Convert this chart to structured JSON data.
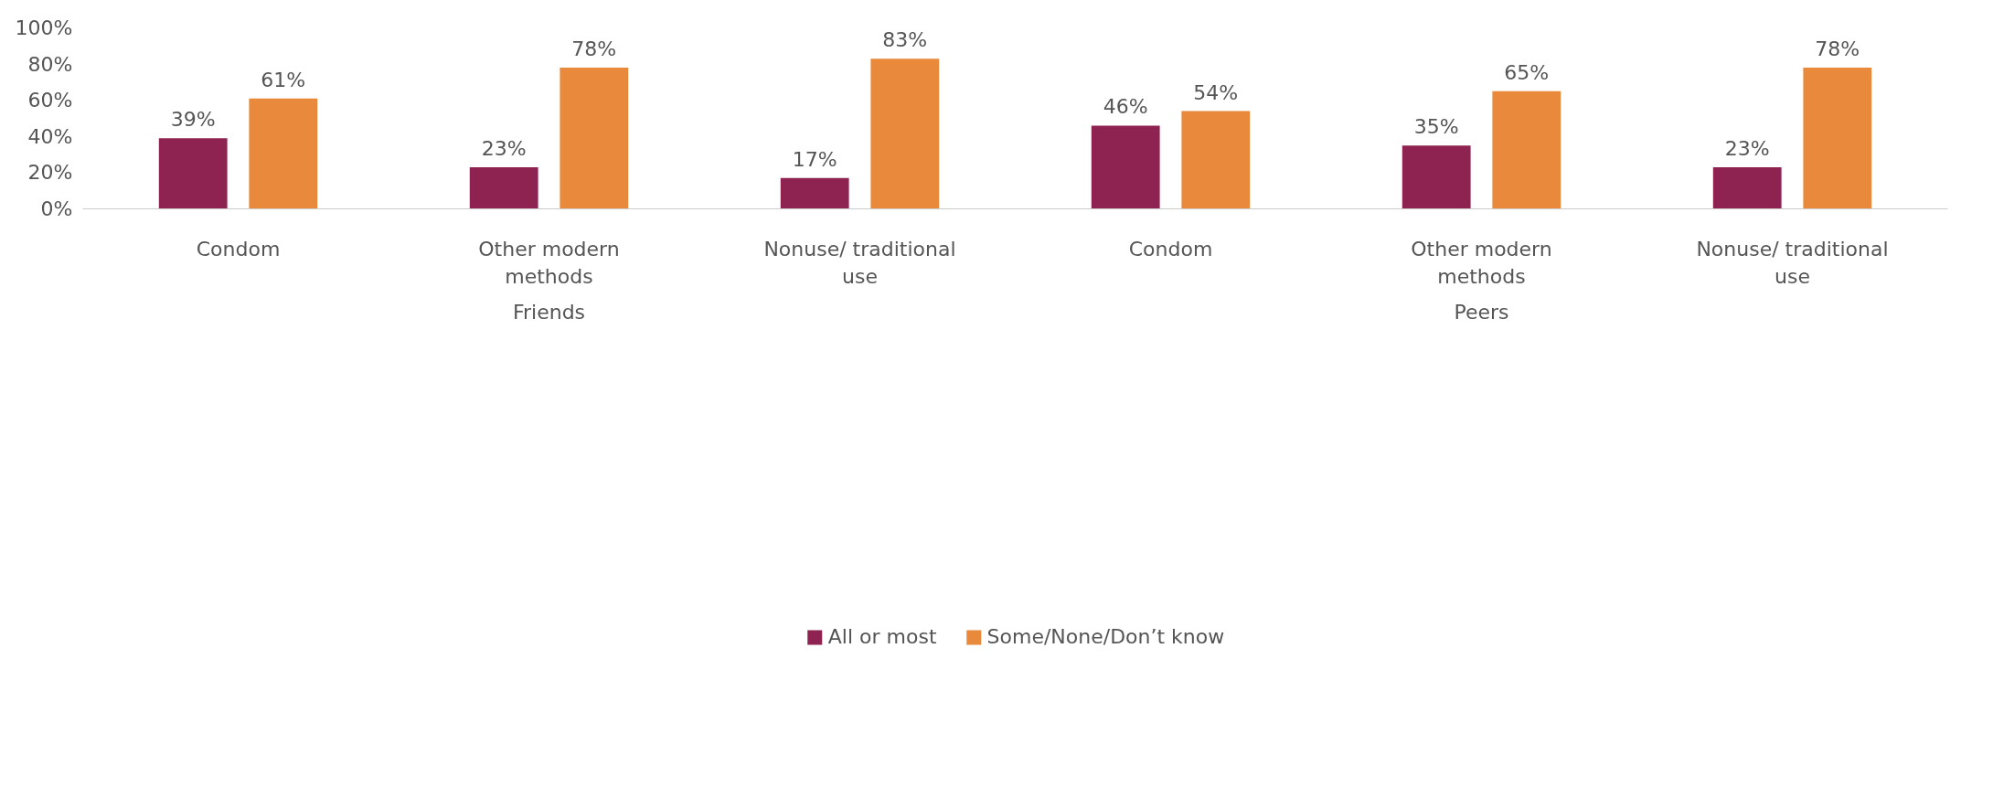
{
  "chart_data": {
    "type": "bar",
    "categories": [
      "Condom",
      "Other modern methods",
      "Nonuse/ traditional use",
      "Condom",
      "Other modern methods",
      "Nonuse/ traditional use"
    ],
    "annotations": [
      "Friends",
      "Peers"
    ],
    "series": [
      {
        "name": "All or most",
        "color": "#8e2250",
        "values": [
          39,
          23,
          17,
          46,
          35,
          23
        ],
        "value_labels": [
          "39%",
          "23%",
          "17%",
          "46%",
          "35%",
          "23%"
        ]
      },
      {
        "name": "Some/None/Don’t know",
        "color": "#e8893b",
        "values": [
          61,
          78,
          83,
          54,
          65,
          78
        ],
        "value_labels": [
          "61%",
          "78%",
          "83%",
          "54%",
          "65%",
          "78%"
        ]
      }
    ],
    "ylim": [
      0,
      100
    ],
    "yticks": [
      {
        "value": 0,
        "label": "0%"
      },
      {
        "value": 20,
        "label": "20%"
      },
      {
        "value": 40,
        "label": "40%"
      },
      {
        "value": 60,
        "label": "60%"
      },
      {
        "value": 80,
        "label": "80%"
      },
      {
        "value": 100,
        "label": "100%"
      }
    ],
    "grid": false,
    "legend": "bottom"
  }
}
